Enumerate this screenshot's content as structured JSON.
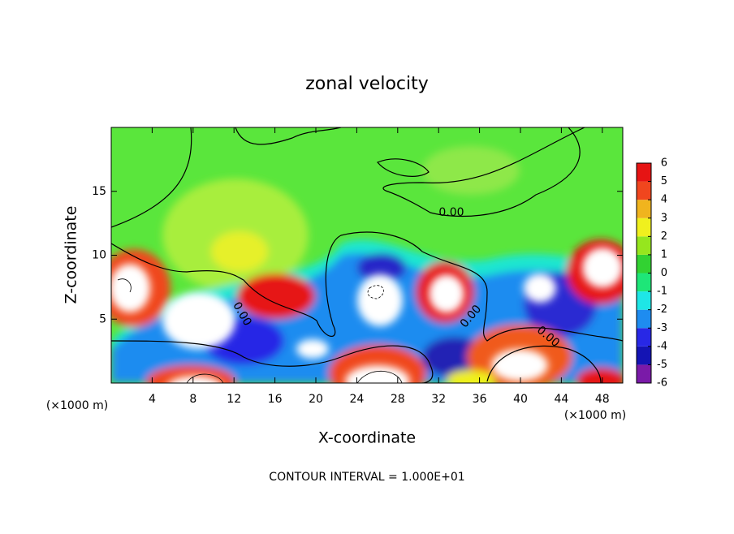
{
  "chart_data": {
    "type": "contour",
    "title": "zonal velocity",
    "x_label": "X-coordinate",
    "y_label": "Z-coordinate",
    "x_unit_labels": [
      "(×1000 m)",
      "(×1000 m)"
    ],
    "footer": "CONTOUR INTERVAL = 1.000E+01",
    "contour_labels": [
      "0.00",
      "0.00",
      "0.00",
      "0.00"
    ],
    "xlim": [
      0,
      50
    ],
    "xticks": [
      4,
      8,
      12,
      16,
      20,
      24,
      28,
      32,
      36,
      40,
      44,
      48
    ],
    "ylim": [
      0,
      20
    ],
    "yticks": [
      5,
      10,
      15
    ],
    "colorbar": {
      "ticks": [
        -6,
        -5,
        -4,
        -3,
        -2,
        -1,
        0,
        1,
        2,
        3,
        4,
        5,
        6
      ],
      "colors": [
        "#7a1aa8",
        "#1414b4",
        "#2828e6",
        "#1e8cf0",
        "#1ee6e6",
        "#1ee678",
        "#32d232",
        "#96e61e",
        "#f0f01e",
        "#f0b41e",
        "#f0461e",
        "#e61414",
        "#f0a0a0"
      ]
    }
  }
}
